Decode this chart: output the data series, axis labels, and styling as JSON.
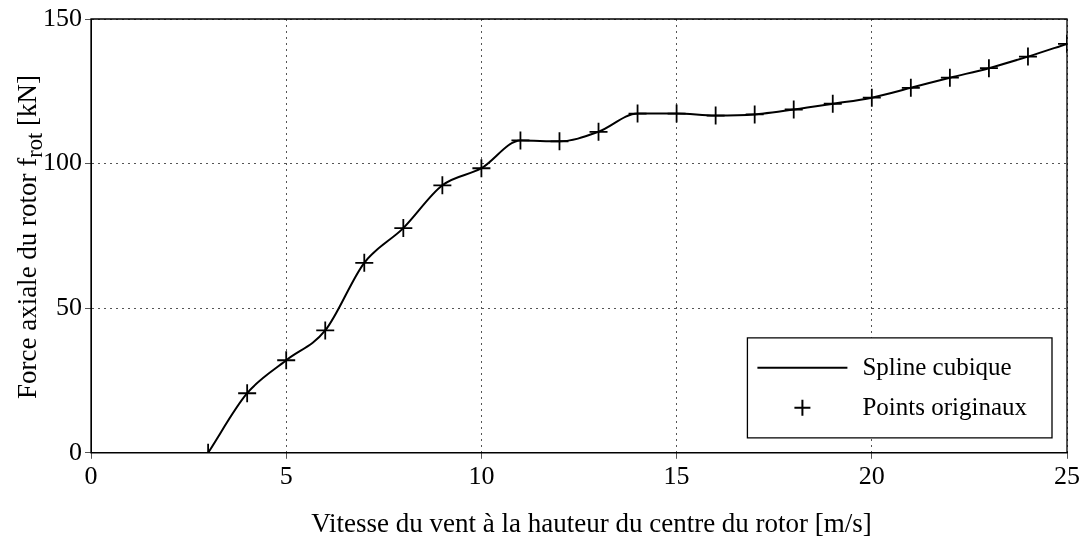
{
  "chart_data": {
    "type": "line",
    "xlabel": "Vitesse du vent à la hauteur du centre du rotor [m/s]",
    "ylabel": "Force axiale du rotor f$_{rot}$ [kN]",
    "x": [
      3,
      4,
      5,
      6,
      7,
      8,
      9,
      10,
      11,
      12,
      13,
      14,
      15,
      16,
      17,
      18,
      19,
      20,
      21,
      22,
      23,
      24,
      25
    ],
    "series": [
      {
        "name": "Spline cubique",
        "color": "#000000",
        "marker": "none",
        "line_style": "solid",
        "values": [
          0,
          20.6,
          32,
          42.3,
          65.7,
          77.7,
          92.5,
          98.4,
          108,
          107.7,
          111,
          117.3,
          117.3,
          116.6,
          117,
          118.7,
          120.7,
          122.8,
          126.2,
          129.7,
          133,
          137,
          141.4
        ]
      },
      {
        "name": "Points originaux",
        "type": "scatter",
        "color": "#000000",
        "marker": "cross",
        "values": [
          0,
          20.6,
          32,
          42.3,
          65.7,
          77.7,
          92.5,
          98.4,
          108,
          107.7,
          111,
          117.3,
          117.3,
          116.6,
          117,
          118.7,
          120.7,
          122.8,
          126.2,
          129.7,
          133,
          137,
          141.4
        ]
      }
    ],
    "xlim": [
      0,
      25
    ],
    "xticks": [
      0,
      5,
      10,
      15,
      20,
      25
    ],
    "ylim": [
      0,
      150
    ],
    "yticks": [
      0,
      50,
      100,
      150
    ],
    "grid": true,
    "legend": "bottom right"
  }
}
